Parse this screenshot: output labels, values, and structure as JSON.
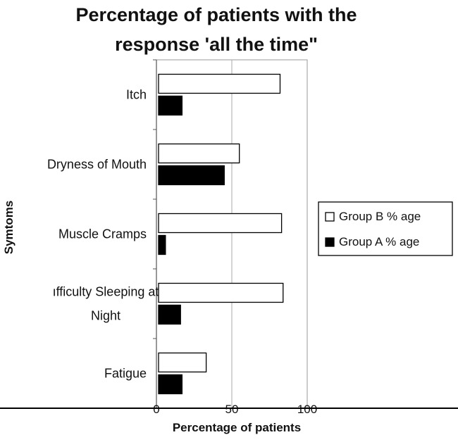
{
  "chart_data": {
    "type": "bar",
    "orientation": "horizontal",
    "title_lines": [
      "Percentage of patients with the",
      "response 'all the time\""
    ],
    "xlabel": "Percentage of patients",
    "ylabel": "Symtoms",
    "xlim": [
      0,
      100
    ],
    "xticks": [
      "0",
      "50",
      "100"
    ],
    "grid": "vertical",
    "legend_position": "right",
    "categories": [
      {
        "lines": [
          "Itch"
        ]
      },
      {
        "lines": [
          "Dryness of Mouth"
        ]
      },
      {
        "lines": [
          "ıfficulty Sleeping at",
          "Night"
        ]
      },
      {
        "lines": [
          "Muscle Cramps"
        ]
      },
      {
        "lines": [
          "Fatigue"
        ]
      }
    ],
    "category_order_top_to_bottom": [
      0,
      1,
      3,
      2,
      4
    ],
    "series": [
      {
        "name": "Group B % age",
        "color": "#ffffff",
        "values": [
          82,
          55,
          84,
          83,
          33
        ]
      },
      {
        "name": "Group A % age",
        "color": "#000000",
        "values": [
          17,
          45,
          16,
          6,
          17
        ]
      }
    ]
  }
}
